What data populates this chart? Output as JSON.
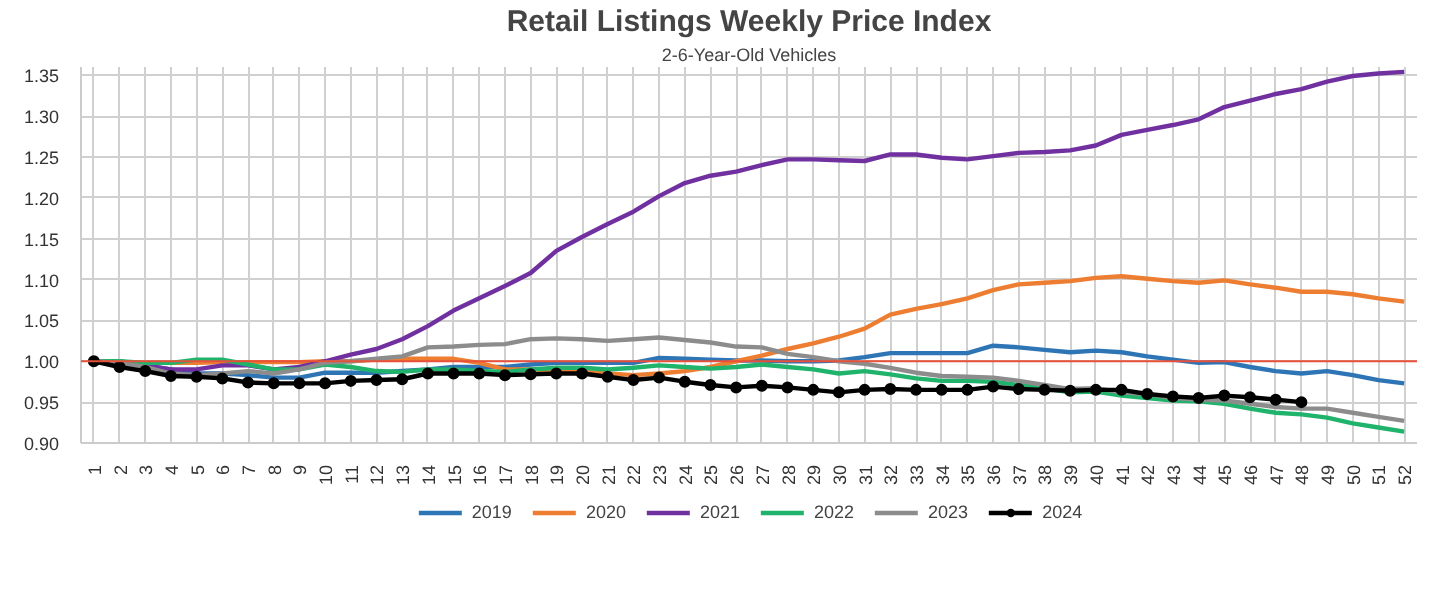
{
  "chart_data": {
    "type": "line",
    "title": "Retail Listings Weekly Price Index",
    "subtitle": "2-6-Year-Old Vehicles",
    "categories": [
      "1",
      "2",
      "3",
      "4",
      "5",
      "6",
      "7",
      "8",
      "9",
      "10",
      "11",
      "12",
      "13",
      "14",
      "15",
      "16",
      "17",
      "18",
      "19",
      "20",
      "21",
      "22",
      "23",
      "24",
      "25",
      "26",
      "27",
      "28",
      "29",
      "30",
      "31",
      "32",
      "33",
      "34",
      "35",
      "36",
      "37",
      "38",
      "39",
      "40",
      "41",
      "42",
      "43",
      "44",
      "45",
      "46",
      "47",
      "48",
      "49",
      "50",
      "51",
      "52"
    ],
    "ylim": [
      0.9,
      1.36
    ],
    "yticks": [
      {
        "value": 0.9,
        "label": "0.90"
      },
      {
        "value": 0.95,
        "label": "0.95"
      },
      {
        "value": 1.0,
        "label": "1.00"
      },
      {
        "value": 1.05,
        "label": "1.05"
      },
      {
        "value": 1.1,
        "label": "1.10"
      },
      {
        "value": 1.15,
        "label": "1.15"
      },
      {
        "value": 1.2,
        "label": "1.20"
      },
      {
        "value": 1.25,
        "label": "1.25"
      },
      {
        "value": 1.3,
        "label": "1.30"
      },
      {
        "value": 1.35,
        "label": "1.35"
      }
    ],
    "grid": true,
    "legend": "bottom",
    "line_style": "solid",
    "ref_lines": [
      {
        "axis": "y",
        "value": 1.0,
        "color": "#e8503a"
      }
    ],
    "series": [
      {
        "name": "2019",
        "color": "#2e75b6",
        "marker": "none",
        "values": [
          1.0,
          0.998,
          0.995,
          0.99,
          0.985,
          0.985,
          0.983,
          0.98,
          0.98,
          0.986,
          0.986,
          0.986,
          0.988,
          0.99,
          0.993,
          0.993,
          0.993,
          0.996,
          0.998,
          0.998,
          0.998,
          0.998,
          1.004,
          1.003,
          1.002,
          1.001,
          1.001,
          1.0,
          1.0,
          1.001,
          1.005,
          1.01,
          1.01,
          1.01,
          1.01,
          1.019,
          1.017,
          1.014,
          1.011,
          1.013,
          1.011,
          1.006,
          1.002,
          0.998,
          0.999,
          0.993,
          0.988,
          0.985,
          0.988,
          0.983,
          0.977,
          0.973
        ]
      },
      {
        "name": "2020",
        "color": "#ed7d31",
        "marker": "none",
        "values": [
          null,
          null,
          0.998,
          0.998,
          0.998,
          0.999,
          0.999,
          0.999,
          0.999,
          1.0,
          1.0,
          1.002,
          1.003,
          1.003,
          1.003,
          0.998,
          0.99,
          0.99,
          0.988,
          0.987,
          0.985,
          0.983,
          0.985,
          0.988,
          0.993,
          1.0,
          1.007,
          1.015,
          1.022,
          1.03,
          1.04,
          1.057,
          1.064,
          1.07,
          1.077,
          1.087,
          1.094,
          1.096,
          1.098,
          1.102,
          1.104,
          1.101,
          1.098,
          1.096,
          1.099,
          1.094,
          1.09,
          1.085,
          1.085,
          1.082,
          1.077,
          1.073
        ]
      },
      {
        "name": "2021",
        "color": "#7030a0",
        "marker": "none",
        "values": [
          1.0,
          1.0,
          0.995,
          0.99,
          0.99,
          0.995,
          0.995,
          0.99,
          0.993,
          1.0,
          1.008,
          1.015,
          1.027,
          1.043,
          1.062,
          1.077,
          1.092,
          1.108,
          1.135,
          1.152,
          1.168,
          1.183,
          1.202,
          1.218,
          1.227,
          1.232,
          1.24,
          1.247,
          1.247,
          1.246,
          1.245,
          1.253,
          1.253,
          1.249,
          1.247,
          1.251,
          1.255,
          1.256,
          1.258,
          1.264,
          1.277,
          1.283,
          1.289,
          1.296,
          1.311,
          1.319,
          1.327,
          1.333,
          1.342,
          1.349,
          1.352,
          1.354
        ]
      },
      {
        "name": "2022",
        "color": "#1fb36b",
        "marker": "none",
        "values": [
          1.0,
          1.0,
          0.998,
          0.998,
          1.002,
          1.002,
          0.996,
          0.99,
          0.99,
          0.996,
          0.993,
          0.988,
          0.987,
          0.99,
          0.99,
          0.988,
          0.987,
          0.99,
          0.992,
          0.992,
          0.99,
          0.992,
          0.995,
          0.993,
          0.991,
          0.993,
          0.996,
          0.993,
          0.99,
          0.985,
          0.988,
          0.984,
          0.979,
          0.976,
          0.976,
          0.975,
          0.971,
          0.967,
          0.962,
          0.963,
          0.958,
          0.955,
          0.952,
          0.951,
          0.948,
          0.942,
          0.937,
          0.935,
          0.931,
          0.924,
          0.919,
          0.914
        ]
      },
      {
        "name": "2023",
        "color": "#8c8c8c",
        "marker": "none",
        "values": [
          1.0,
          0.998,
          0.993,
          0.985,
          0.983,
          0.985,
          0.988,
          0.985,
          0.99,
          0.998,
          1.0,
          1.003,
          1.006,
          1.017,
          1.018,
          1.02,
          1.021,
          1.027,
          1.028,
          1.027,
          1.025,
          1.027,
          1.029,
          1.026,
          1.023,
          1.018,
          1.017,
          1.009,
          1.005,
          1.0,
          0.997,
          0.992,
          0.986,
          0.982,
          0.981,
          0.98,
          0.976,
          0.971,
          0.966,
          0.967,
          0.962,
          0.96,
          0.955,
          0.953,
          0.952,
          0.948,
          0.944,
          0.942,
          0.942,
          0.937,
          0.932,
          0.927
        ]
      },
      {
        "name": "2024",
        "color": "#000000",
        "marker": "circle",
        "values": [
          1.0,
          0.993,
          0.988,
          0.982,
          0.981,
          0.979,
          0.974,
          0.973,
          0.973,
          0.973,
          0.976,
          0.977,
          0.978,
          0.985,
          0.985,
          0.985,
          0.983,
          0.984,
          0.985,
          0.985,
          0.981,
          0.977,
          0.98,
          0.975,
          0.971,
          0.968,
          0.97,
          0.968,
          0.965,
          0.962,
          0.965,
          0.966,
          0.965,
          0.965,
          0.965,
          0.969,
          0.966,
          0.965,
          0.964,
          0.965,
          0.965,
          0.96,
          0.957,
          0.955,
          0.958,
          0.956,
          0.953,
          0.95,
          null,
          null,
          null,
          null
        ]
      }
    ]
  }
}
